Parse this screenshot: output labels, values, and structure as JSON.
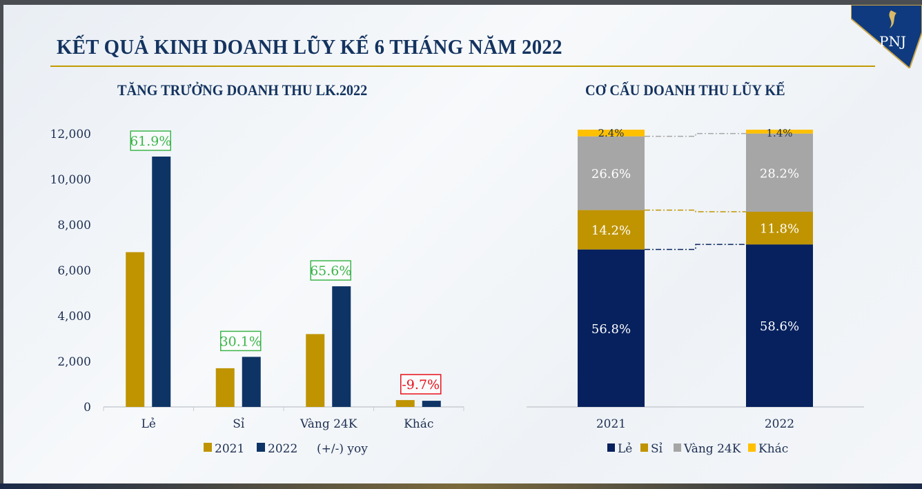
{
  "title": "KẾT QUẢ KINH DOANH LŨY KẾ 6 THÁNG NĂM 2022",
  "logo_text": "PNJ",
  "colors": {
    "gold": "#bf9400",
    "navy": "#0e3466",
    "navy_dark": "#07215e",
    "gray": "#a6a6a6",
    "yellow": "#ffc000",
    "green": "#3cb54a",
    "red": "#e8101a",
    "title": "#14335f"
  },
  "chart_data": [
    {
      "type": "bar",
      "title": "TĂNG TRƯỞNG DOANH THU LK.2022",
      "categories": [
        "Lẻ",
        "Sỉ",
        "Vàng 24K",
        "Khác"
      ],
      "series": [
        {
          "name": "2021",
          "values": [
            6800,
            1700,
            3200,
            300
          ],
          "color": "#bf9400"
        },
        {
          "name": "2022",
          "values": [
            11000,
            2200,
            5300,
            270
          ],
          "color": "#0e3466"
        }
      ],
      "annotations": [
        {
          "category": "Lẻ",
          "label": "61.9%",
          "color": "#3cb54a"
        },
        {
          "category": "Sỉ",
          "label": "30.1%",
          "color": "#3cb54a"
        },
        {
          "category": "Vàng 24K",
          "label": "65.6%",
          "color": "#3cb54a"
        },
        {
          "category": "Khác",
          "label": "-9.7%",
          "color": "#e8101a"
        }
      ],
      "legend_extra": "(+/-) yoy",
      "yticks": [
        "0",
        "2,000",
        "4,000",
        "6,000",
        "8,000",
        "10,000",
        "12,000"
      ],
      "ylim": [
        0,
        12000
      ],
      "legend": "bottom",
      "grid": false
    },
    {
      "type": "bar",
      "stacked": true,
      "title": "CƠ CẤU DOANH THU LŨY KẾ",
      "categories": [
        "2021",
        "2022"
      ],
      "series": [
        {
          "name": "Lẻ",
          "values": [
            56.8,
            58.6
          ],
          "labels": [
            "56.8%",
            "58.6%"
          ],
          "color": "#07215e"
        },
        {
          "name": "Sỉ",
          "values": [
            14.2,
            11.8
          ],
          "labels": [
            "14.2%",
            "11.8%"
          ],
          "color": "#bf9400"
        },
        {
          "name": "Vàng 24K",
          "values": [
            26.6,
            28.2
          ],
          "labels": [
            "26.6%",
            "28.2%"
          ],
          "color": "#a6a6a6"
        },
        {
          "name": "Khác",
          "values": [
            2.4,
            1.4
          ],
          "labels": [
            "2.4%",
            "1.4%"
          ],
          "color": "#ffc000"
        }
      ],
      "ylim": [
        0,
        100
      ],
      "legend": "bottom",
      "grid": false
    }
  ]
}
